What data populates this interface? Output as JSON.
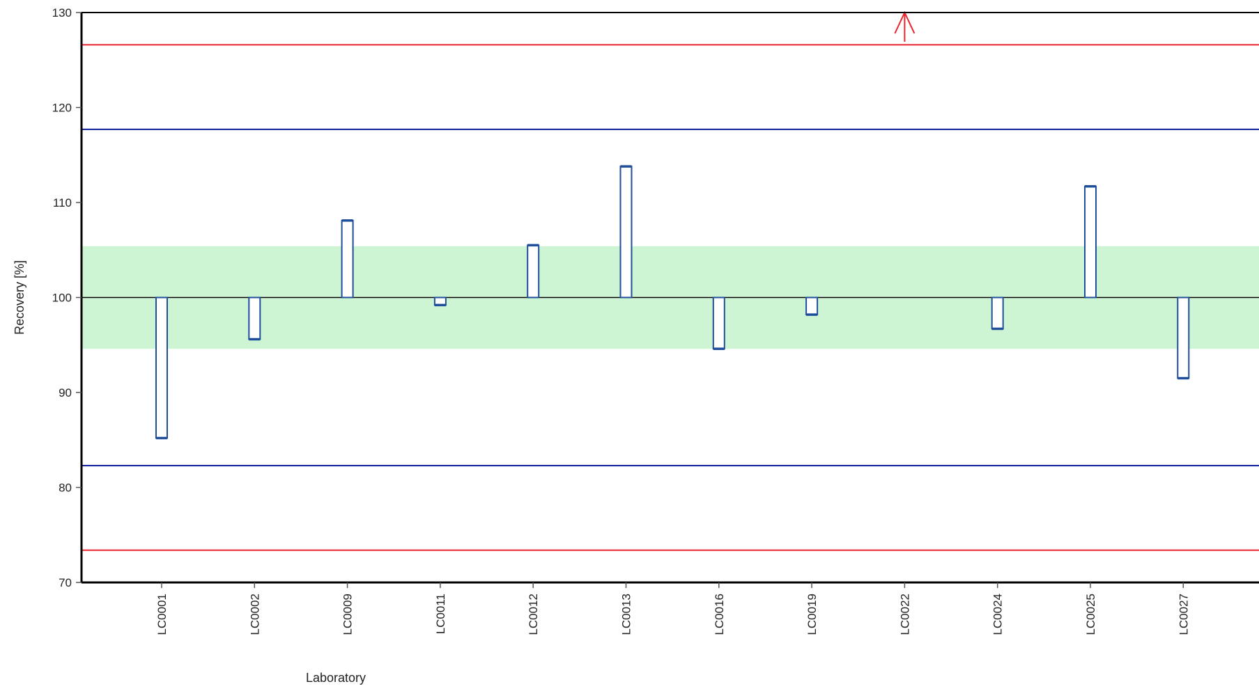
{
  "chart_data": {
    "type": "bar",
    "xlabel": "Laboratory",
    "ylabel": "Recovery [%]",
    "ylim": [
      70,
      130
    ],
    "yticks": [
      70,
      80,
      90,
      100,
      110,
      120,
      130
    ],
    "baseline": 100,
    "categories": [
      "LC0001",
      "LC0002",
      "LC0009",
      "LC0011",
      "LC0012",
      "LC0013",
      "LC0016",
      "LC0019",
      "LC0022",
      "LC0024",
      "LC0025",
      "LC0027"
    ],
    "values": [
      85.2,
      95.6,
      108.1,
      99.2,
      105.5,
      113.8,
      94.6,
      98.2,
      null,
      96.7,
      111.7,
      91.5
    ],
    "off_scale_above": [
      "LC0022"
    ],
    "tolerance_band": [
      94.6,
      105.4
    ],
    "inner_limits": [
      82.3,
      117.7
    ],
    "outer_limits": [
      73.4,
      126.6
    ],
    "grid": false,
    "legend": "none",
    "colors": {
      "bar_outline": "#1f4e9a",
      "bar_fill": "#ffffff",
      "tolerance_band": "#cdf5d3",
      "inner_limits": "#0b1f9c",
      "outer_limits": "#e8242c",
      "off_scale_arrow": "#e8242c",
      "axis": "#000000"
    }
  }
}
